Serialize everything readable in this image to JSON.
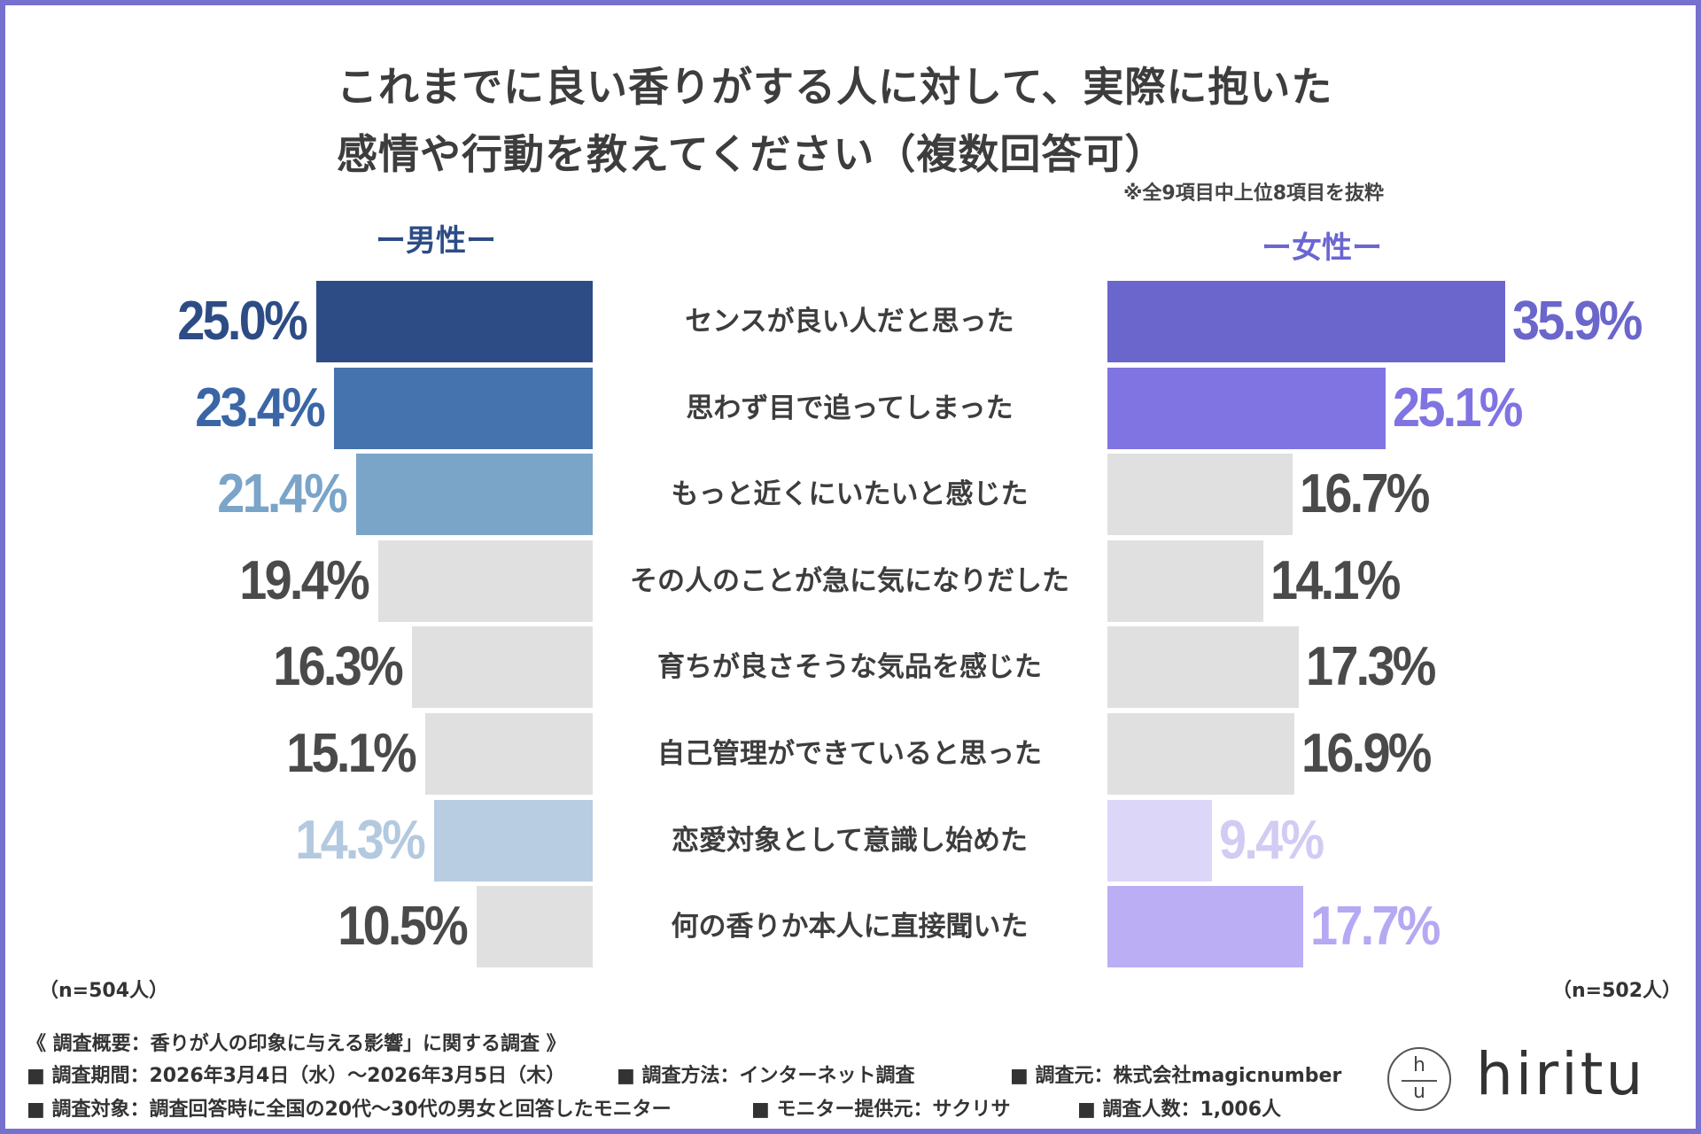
{
  "chart_data": {
    "type": "bar",
    "title_lines": [
      "これまでに良い香りがする人に対して、実際に抱いた",
      "感情や行動を教えてください（複数回答可）"
    ],
    "note": "※全9項目中上位8項目を抜粋",
    "categories": [
      "センスが良い人だと思った",
      "思わず目で追ってしまった",
      "もっと近くにいたいと感じた",
      "その人のことが急に気になりだした",
      "育ちが良さそうな気品を感じた",
      "自己管理ができていると思った",
      "恋愛対象として意識し始めた",
      "何の香りか本人に直接聞いた"
    ],
    "series": [
      {
        "name": "男性",
        "label": "ー男性ー",
        "n_label": "（n=504人）",
        "values": [
          25.0,
          23.4,
          21.4,
          19.4,
          16.3,
          15.1,
          14.3,
          10.5
        ],
        "value_labels": [
          "25.0%",
          "23.4%",
          "21.4%",
          "19.4%",
          "16.3%",
          "15.1%",
          "14.3%",
          "10.5%"
        ],
        "bar_colors": [
          "#2d4c86",
          "#4573ad",
          "#7ba4c9",
          "#e0e0e0",
          "#e0e0e0",
          "#e0e0e0",
          "#b8cde2",
          "#e0e0e0"
        ],
        "text_colors": [
          "#2d4c86",
          "#3b66a6",
          "#7ba4c9",
          "#4a4a4a",
          "#4a4a4a",
          "#4a4a4a",
          "#b3c9df",
          "#4a4a4a"
        ]
      },
      {
        "name": "女性",
        "label": "ー女性ー",
        "n_label": "（n=502人）",
        "values": [
          35.9,
          25.1,
          16.7,
          14.1,
          17.3,
          16.9,
          9.4,
          17.7
        ],
        "value_labels": [
          "35.9%",
          "25.1%",
          "16.7%",
          "14.1%",
          "17.3%",
          "16.9%",
          "9.4%",
          "17.7%"
        ],
        "bar_colors": [
          "#6b66cc",
          "#7f74e2",
          "#e0e0e0",
          "#e0e0e0",
          "#e0e0e0",
          "#e0e0e0",
          "#dcd6f8",
          "#bcaef5"
        ],
        "text_colors": [
          "#6b66cc",
          "#7f74e2",
          "#4a4a4a",
          "#4a4a4a",
          "#4a4a4a",
          "#4a4a4a",
          "#d2cbf4",
          "#b6a8f2"
        ]
      }
    ],
    "xlim": [
      0,
      40
    ]
  },
  "footer": {
    "heading": "《 調査概要：香りが人の印象に与える影響」に関する調査 》",
    "items": [
      "■ 調査期間：2026年3月4日（水）～2026年3月5日（木）",
      "■ 調査方法：インターネット調査",
      "■ 調査元：株式会社magicnumber",
      "■ 調査対象：調査回答時に全国の20代～30代の男女と回答したモニター",
      "■ モニター提供元：サクリサ",
      "■ 調査人数：1,006人"
    ]
  },
  "logo": {
    "mark_top": "h",
    "mark_bottom": "u",
    "word": "hiritu"
  }
}
